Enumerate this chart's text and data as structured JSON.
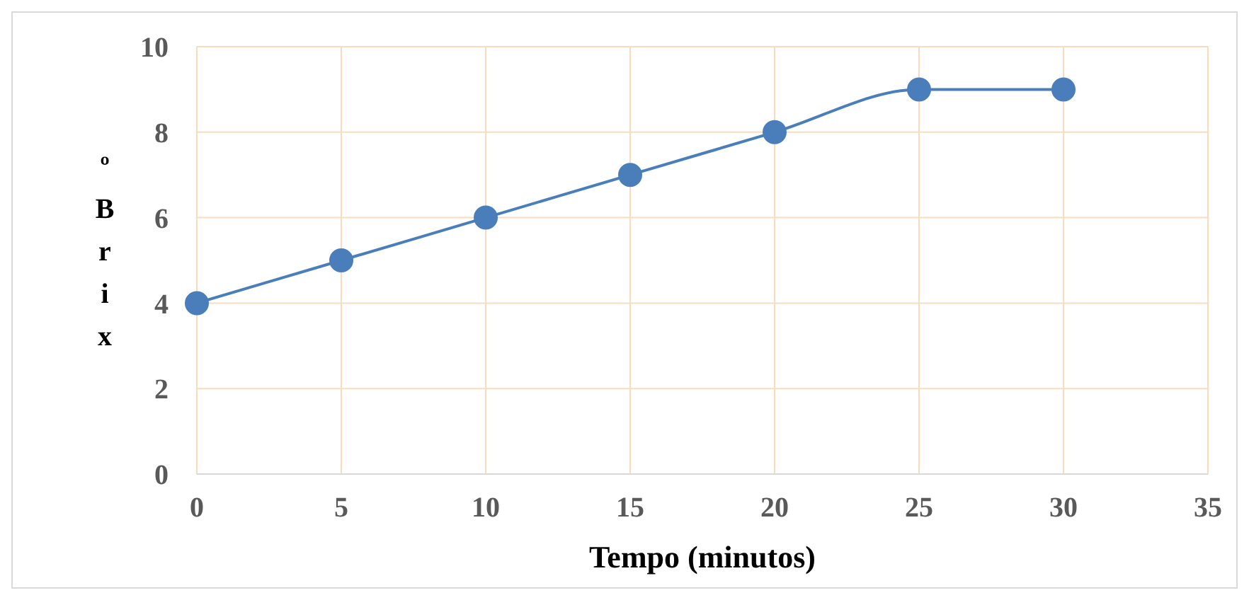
{
  "chart_data": {
    "type": "line",
    "xlabel": "Tempo (minutos)",
    "ylabel": "ºBrix",
    "x": [
      0,
      5,
      10,
      15,
      20,
      25,
      30
    ],
    "series": [
      {
        "color": "#4a7ebb",
        "values": [
          4,
          5,
          6,
          7,
          8,
          9,
          9
        ]
      }
    ],
    "xlim": [
      0,
      35
    ],
    "xticks": [
      0,
      5,
      10,
      15,
      20,
      25,
      30,
      35
    ],
    "ylim": [
      0,
      10
    ],
    "yticks": [
      0,
      2,
      4,
      6,
      8,
      10
    ],
    "grid": true,
    "marker": "circle",
    "line_style": "solid"
  }
}
